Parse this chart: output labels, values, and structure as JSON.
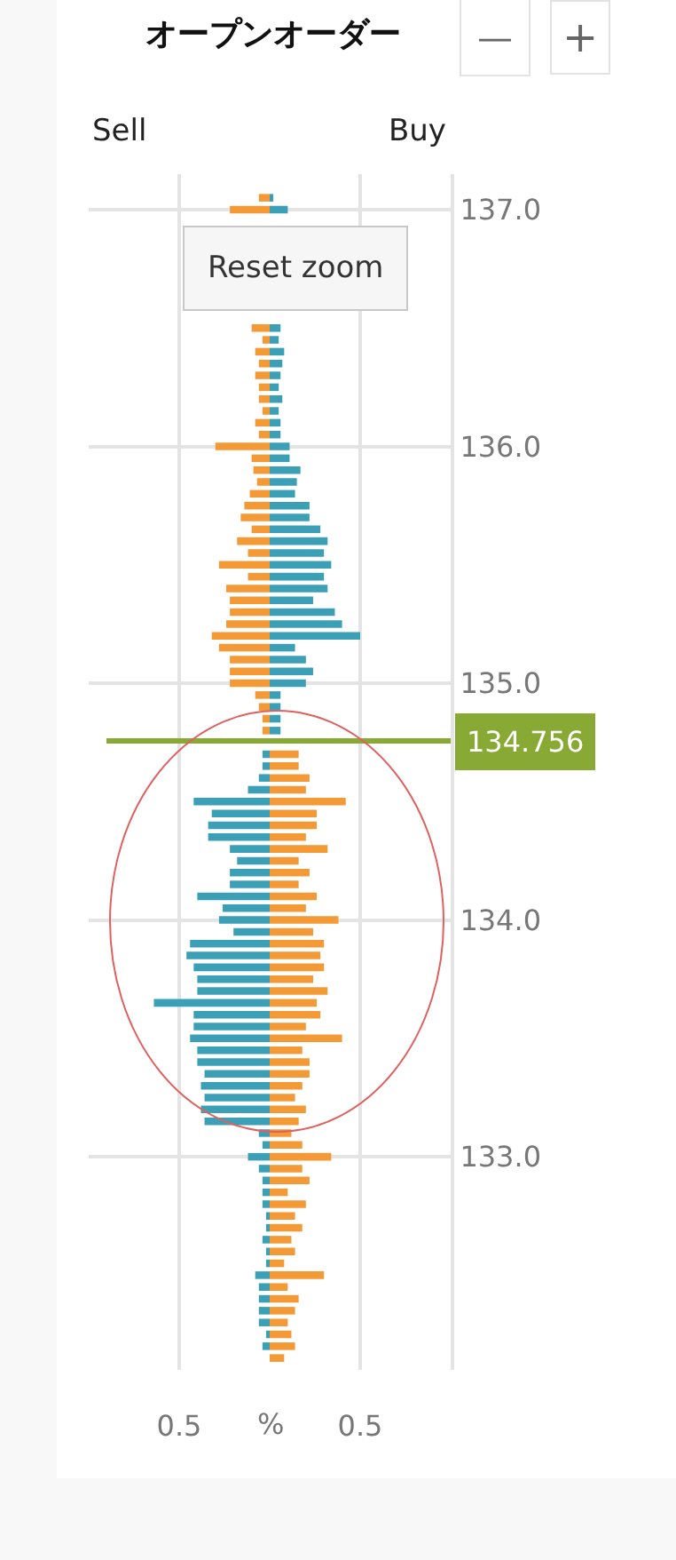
{
  "chart_data": {
    "type": "bar",
    "orientation": "horizontal",
    "title": "オープンオーダー",
    "xlabel": "%",
    "annotations": [
      "Reset zoom",
      "—",
      "+",
      "Sell",
      "Buy"
    ],
    "x": [
      137.05,
      137.0,
      136.95,
      136.9,
      136.85,
      136.8,
      136.75,
      136.7,
      136.65,
      136.6,
      136.55,
      136.5,
      136.45,
      136.4,
      136.35,
      136.3,
      136.25,
      136.2,
      136.15,
      136.1,
      136.05,
      136.0,
      135.95,
      135.9,
      135.85,
      135.8,
      135.75,
      135.7,
      135.65,
      135.6,
      135.55,
      135.5,
      135.45,
      135.4,
      135.35,
      135.3,
      135.25,
      135.2,
      135.15,
      135.1,
      135.05,
      135.0,
      134.95,
      134.9,
      134.85,
      134.8,
      134.75,
      134.7,
      134.65,
      134.6,
      134.55,
      134.5,
      134.45,
      134.4,
      134.35,
      134.3,
      134.25,
      134.2,
      134.15,
      134.1,
      134.05,
      134.0,
      133.95,
      133.9,
      133.85,
      133.8,
      133.75,
      133.7,
      133.65,
      133.6,
      133.55,
      133.5,
      133.45,
      133.4,
      133.35,
      133.3,
      133.25,
      133.2,
      133.15,
      133.1,
      133.05,
      133.0,
      132.95,
      132.9,
      132.85,
      132.8,
      132.75,
      132.7,
      132.65,
      132.6,
      132.55,
      132.5,
      132.45,
      132.4,
      132.35,
      132.3,
      132.25,
      132.2,
      132.15
    ],
    "series": [
      {
        "values": [
          -0.06,
          -0.22,
          null,
          null,
          null,
          null,
          null,
          null,
          null,
          null,
          null,
          -0.1,
          -0.04,
          -0.08,
          -0.06,
          -0.08,
          -0.06,
          -0.06,
          -0.04,
          -0.08,
          -0.06,
          -0.3,
          -0.1,
          -0.09,
          -0.07,
          -0.11,
          -0.14,
          -0.16,
          -0.1,
          -0.18,
          -0.12,
          -0.28,
          -0.12,
          -0.24,
          -0.22,
          -0.22,
          -0.24,
          -0.32,
          -0.28,
          -0.22,
          -0.22,
          -0.22,
          -0.08,
          -0.06,
          -0.04,
          -0.04,
          null,
          -0.04,
          -0.04,
          -0.06,
          -0.12,
          -0.42,
          -0.32,
          -0.34,
          -0.34,
          -0.22,
          -0.18,
          -0.22,
          -0.22,
          -0.4,
          -0.26,
          -0.28,
          -0.2,
          -0.44,
          -0.46,
          -0.42,
          -0.4,
          -0.4,
          -0.64,
          -0.42,
          -0.42,
          -0.44,
          -0.4,
          -0.4,
          -0.36,
          -0.38,
          -0.36,
          -0.38,
          -0.36,
          -0.06,
          -0.04,
          -0.12,
          -0.06,
          -0.04,
          -0.04,
          -0.04,
          -0.02,
          -0.02,
          -0.04,
          -0.02,
          -0.02,
          -0.08,
          -0.06,
          -0.06,
          -0.06,
          -0.06,
          -0.02,
          -0.04,
          0
        ],
        "colors": [
          "#f39a36",
          "#f39a36",
          "#f39a36",
          "#f39a36",
          "#f39a36",
          "#f39a36",
          "#f39a36",
          "#f39a36",
          "#f39a36",
          "#f39a36",
          "#f39a36",
          "#f39a36",
          "#f39a36",
          "#f39a36",
          "#f39a36",
          "#f39a36",
          "#f39a36",
          "#f39a36",
          "#f39a36",
          "#f39a36",
          "#f39a36",
          "#f39a36",
          "#f39a36",
          "#f39a36",
          "#f39a36",
          "#f39a36",
          "#f39a36",
          "#f39a36",
          "#f39a36",
          "#f39a36",
          "#f39a36",
          "#f39a36",
          "#f39a36",
          "#f39a36",
          "#f39a36",
          "#f39a36",
          "#f39a36",
          "#f39a36",
          "#f39a36",
          "#f39a36",
          "#f39a36",
          "#f39a36",
          "#f39a36",
          "#f39a36",
          "#f39a36",
          "#f39a36",
          "#f39a36",
          "#3ba0b6",
          "#3ba0b6",
          "#3ba0b6",
          "#3ba0b6",
          "#3ba0b6",
          "#3ba0b6",
          "#3ba0b6",
          "#3ba0b6",
          "#3ba0b6",
          "#3ba0b6",
          "#3ba0b6",
          "#3ba0b6",
          "#3ba0b6",
          "#3ba0b6",
          "#3ba0b6",
          "#3ba0b6",
          "#3ba0b6",
          "#3ba0b6",
          "#3ba0b6",
          "#3ba0b6",
          "#3ba0b6",
          "#3ba0b6",
          "#3ba0b6",
          "#3ba0b6",
          "#3ba0b6",
          "#3ba0b6",
          "#3ba0b6",
          "#3ba0b6",
          "#3ba0b6",
          "#3ba0b6",
          "#3ba0b6",
          "#3ba0b6",
          "#3ba0b6",
          "#3ba0b6",
          "#3ba0b6",
          "#3ba0b6",
          "#3ba0b6",
          "#3ba0b6",
          "#3ba0b6",
          "#3ba0b6",
          "#3ba0b6",
          "#3ba0b6",
          "#3ba0b6",
          "#3ba0b6",
          "#3ba0b6",
          "#3ba0b6",
          "#3ba0b6",
          "#3ba0b6",
          "#3ba0b6",
          "#3ba0b6",
          "#3ba0b6",
          "#3ba0b6"
        ]
      },
      {
        "values": [
          0.02,
          0.1,
          null,
          null,
          null,
          null,
          null,
          null,
          null,
          null,
          null,
          0.06,
          0.05,
          0.08,
          0.07,
          0.06,
          0.05,
          0.07,
          0.05,
          0.06,
          0.06,
          0.11,
          0.11,
          0.17,
          0.15,
          0.14,
          0.22,
          0.22,
          0.28,
          0.32,
          0.3,
          0.34,
          0.3,
          0.32,
          0.24,
          0.36,
          0.4,
          0.5,
          0.14,
          0.2,
          0.24,
          0.2,
          0.06,
          0.06,
          0.06,
          0.06,
          null,
          0.16,
          0.16,
          0.22,
          0.2,
          0.42,
          0.26,
          0.26,
          0.2,
          0.32,
          0.16,
          0.22,
          0.16,
          0.26,
          0.2,
          0.38,
          0.24,
          0.3,
          0.28,
          0.3,
          0.24,
          0.32,
          0.26,
          0.28,
          0.2,
          0.4,
          0.18,
          0.22,
          0.22,
          0.18,
          0.14,
          0.2,
          0.16,
          0.12,
          0.18,
          0.34,
          0.18,
          0.22,
          0.1,
          0.2,
          0.14,
          0.18,
          0.12,
          0.14,
          0.08,
          0.3,
          0.1,
          0.16,
          0.14,
          0.1,
          0.12,
          0.14,
          0.08
        ],
        "colors": [
          "#3ba0b6",
          "#3ba0b6",
          "#3ba0b6",
          "#3ba0b6",
          "#3ba0b6",
          "#3ba0b6",
          "#3ba0b6",
          "#3ba0b6",
          "#3ba0b6",
          "#3ba0b6",
          "#3ba0b6",
          "#3ba0b6",
          "#3ba0b6",
          "#3ba0b6",
          "#3ba0b6",
          "#3ba0b6",
          "#3ba0b6",
          "#3ba0b6",
          "#3ba0b6",
          "#3ba0b6",
          "#3ba0b6",
          "#3ba0b6",
          "#3ba0b6",
          "#3ba0b6",
          "#3ba0b6",
          "#3ba0b6",
          "#3ba0b6",
          "#3ba0b6",
          "#3ba0b6",
          "#3ba0b6",
          "#3ba0b6",
          "#3ba0b6",
          "#3ba0b6",
          "#3ba0b6",
          "#3ba0b6",
          "#3ba0b6",
          "#3ba0b6",
          "#3ba0b6",
          "#3ba0b6",
          "#3ba0b6",
          "#3ba0b6",
          "#3ba0b6",
          "#3ba0b6",
          "#3ba0b6",
          "#3ba0b6",
          "#3ba0b6",
          "#3ba0b6",
          "#f39a36",
          "#f39a36",
          "#f39a36",
          "#f39a36",
          "#f39a36",
          "#f39a36",
          "#f39a36",
          "#f39a36",
          "#f39a36",
          "#f39a36",
          "#f39a36",
          "#f39a36",
          "#f39a36",
          "#f39a36",
          "#f39a36",
          "#f39a36",
          "#f39a36",
          "#f39a36",
          "#f39a36",
          "#f39a36",
          "#f39a36",
          "#f39a36",
          "#f39a36",
          "#f39a36",
          "#f39a36",
          "#f39a36",
          "#f39a36",
          "#f39a36",
          "#f39a36",
          "#f39a36",
          "#f39a36",
          "#f39a36",
          "#f39a36",
          "#f39a36",
          "#f39a36",
          "#f39a36",
          "#f39a36",
          "#f39a36",
          "#f39a36",
          "#f39a36",
          "#f39a36",
          "#f39a36",
          "#f39a36",
          "#f39a36",
          "#f39a36",
          "#f39a36",
          "#f39a36",
          "#f39a36",
          "#f39a36",
          "#f39a36",
          "#f39a36",
          "#f39a36"
        ]
      }
    ],
    "xlim": [
      -1.0,
      1.0
    ],
    "xticks": [
      {
        "value": -0.5,
        "label": "0.5"
      },
      {
        "value": 0.5,
        "label": "0.5"
      }
    ],
    "ylim": [
      132.1,
      137.15
    ],
    "yticks": [
      {
        "value": 133.0,
        "label": "133.0"
      },
      {
        "value": 134.0,
        "label": "134.0"
      },
      {
        "value": 135.0,
        "label": "135.0"
      },
      {
        "value": 136.0,
        "label": "136.0"
      },
      {
        "value": 137.0,
        "label": "137.0"
      }
    ],
    "ref_lines": [
      {
        "axis": "y",
        "value": 134.756,
        "label": "134.756",
        "color": "#88aa35"
      }
    ],
    "stacked": true,
    "grid": true
  }
}
